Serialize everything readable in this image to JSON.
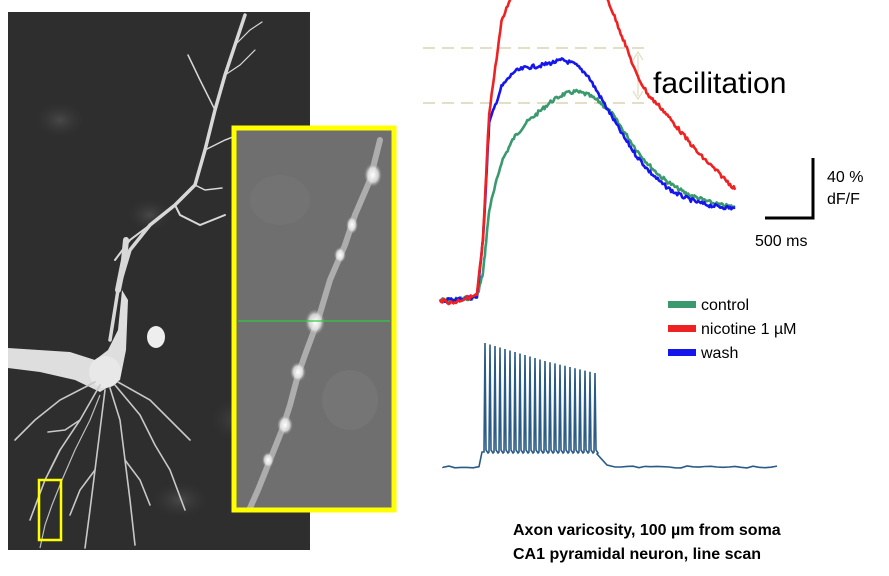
{
  "chart_data": {
    "type": "line",
    "traces": {
      "x_unit": "ms",
      "y_unit": "% dF/F",
      "series": [
        {
          "name": "control",
          "color": "#3a9a6e",
          "x": [
            0,
            100,
            200,
            300,
            350,
            400,
            500,
            600,
            700,
            800,
            900,
            1000,
            1100,
            1200,
            1300,
            1400,
            1500,
            1600,
            1700,
            1800,
            1900,
            2000,
            2100,
            2200,
            2300,
            2400
          ],
          "y": [
            0,
            0,
            1,
            2,
            18,
            60,
            92,
            108,
            118,
            125,
            132,
            137,
            139,
            137,
            132,
            124,
            112,
            100,
            90,
            82,
            76,
            71,
            68,
            65,
            63,
            62
          ]
        },
        {
          "name": "nicotine 1 µM",
          "color": "#ee2222",
          "x": [
            0,
            100,
            200,
            300,
            350,
            400,
            500,
            600,
            700,
            800,
            900,
            1000,
            1100,
            1200,
            1300,
            1400,
            1500,
            1600,
            1700,
            1800,
            1900,
            2000,
            2100,
            2200,
            2300,
            2400
          ],
          "y": [
            0,
            -2,
            1,
            3,
            40,
            125,
            185,
            208,
            218,
            224,
            227,
            229,
            229,
            228,
            213,
            193,
            172,
            150,
            136,
            128,
            118,
            108,
            98,
            90,
            82,
            74
          ]
        },
        {
          "name": "wash",
          "color": "#1515ee",
          "x": [
            0,
            100,
            200,
            300,
            350,
            400,
            500,
            600,
            700,
            800,
            900,
            1000,
            1100,
            1200,
            1300,
            1400,
            1500,
            1600,
            1700,
            1800,
            1900,
            2000,
            2100,
            2200,
            2300,
            2400
          ],
          "y": [
            0,
            0,
            1,
            2,
            40,
            118,
            142,
            152,
            155,
            156,
            158,
            160,
            157,
            150,
            136,
            122,
            108,
            96,
            86,
            78,
            72,
            68,
            65,
            63,
            62,
            61
          ]
        }
      ]
    },
    "facilitation_label": "facilitation",
    "scale_bar": {
      "y_label": "40 %",
      "y_unit_label": "dF/F",
      "x_label": "500 ms"
    },
    "spikes": {
      "count": 23,
      "color": "#2a5a86"
    }
  },
  "caption": {
    "line1": "Axon varicosity, 100 µm from soma",
    "line2": "CA1 pyramidal neuron, line scan"
  },
  "micrograph": {
    "inset_frame_color": "#ffff00",
    "scan_line_color": "#2ecc40"
  }
}
